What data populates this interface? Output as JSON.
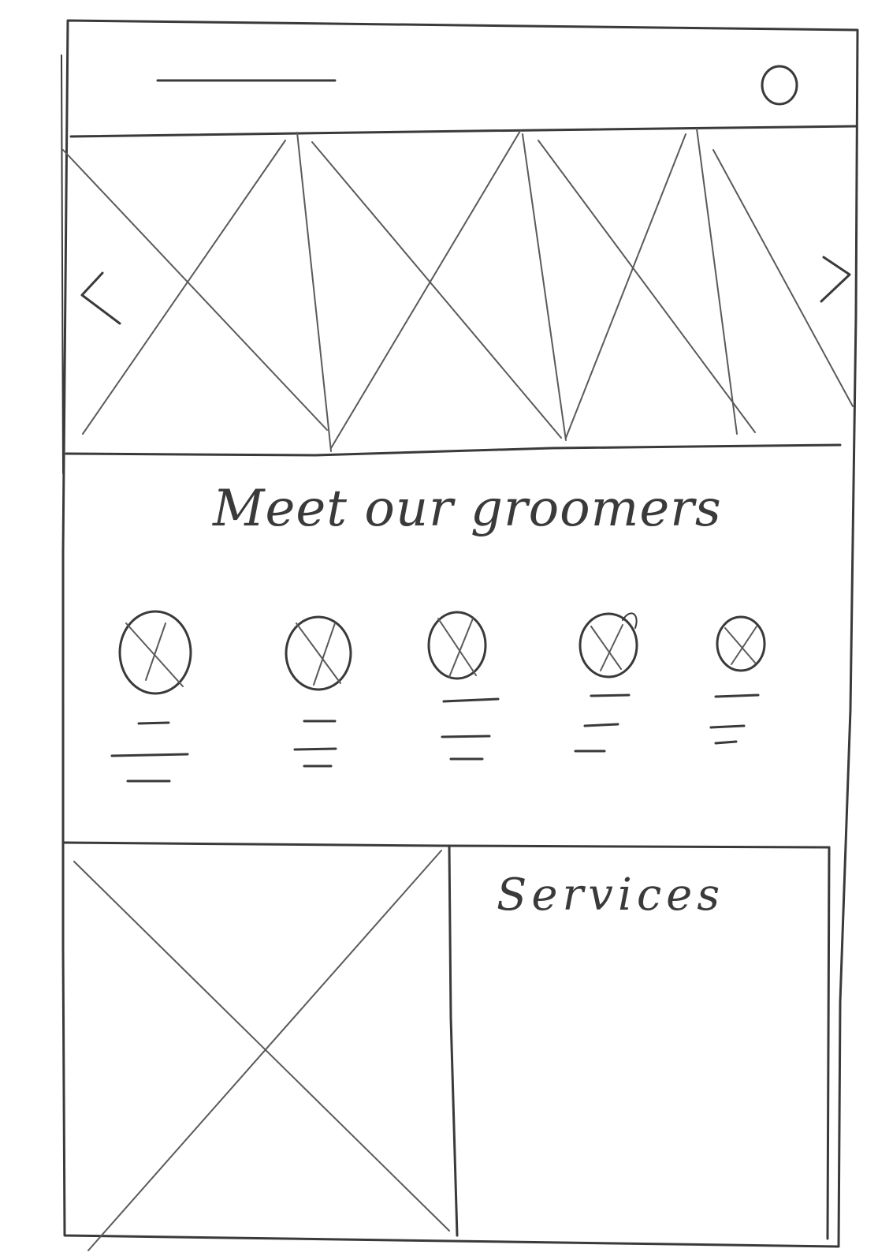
{
  "meet_section": {
    "title": "Meet our groomers"
  },
  "services_panel": {
    "title": "Services"
  },
  "groomers": [
    {
      "avatar": "image-placeholder"
    },
    {
      "avatar": "image-placeholder"
    },
    {
      "avatar": "image-placeholder"
    },
    {
      "avatar": "image-placeholder"
    },
    {
      "avatar": "image-placeholder"
    }
  ],
  "icons": {
    "profile": "circle-icon",
    "carousel_prev": "chevron-left-icon",
    "carousel_next": "chevron-right-icon"
  },
  "ink_color": "#3a3a3a"
}
